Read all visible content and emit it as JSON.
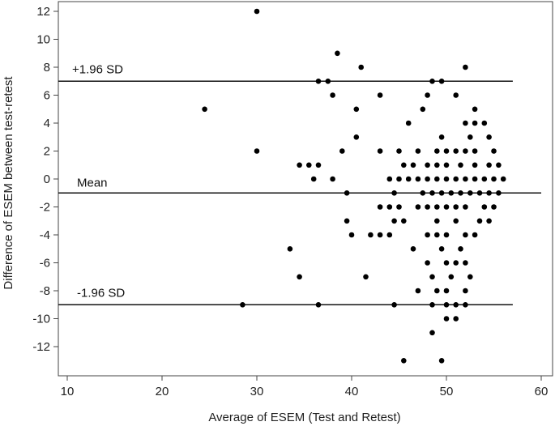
{
  "chart_data": {
    "type": "scatter",
    "xlabel": "Average of ESEM (Test and Retest)",
    "ylabel": "Difference of ESEM between test-retest",
    "xlim": [
      10,
      60
    ],
    "ylim": [
      -13,
      12
    ],
    "x_ticks": [
      10,
      20,
      30,
      40,
      50,
      60
    ],
    "y_ticks": [
      12,
      10,
      8,
      6,
      4,
      2,
      0,
      -2,
      -4,
      -6,
      -8,
      -10,
      -12
    ],
    "grid": false,
    "reference_lines": [
      {
        "label": "+1.96 SD",
        "y": 7,
        "x_range": [
          10,
          57
        ]
      },
      {
        "label": "Mean",
        "y": -1,
        "x_range": [
          10,
          60
        ]
      },
      {
        "label": "-1.96 SD",
        "y": -9,
        "x_range": [
          10,
          57
        ]
      }
    ],
    "points": [
      [
        30,
        12
      ],
      [
        38.5,
        9
      ],
      [
        41,
        8
      ],
      [
        52,
        8
      ],
      [
        36.5,
        7
      ],
      [
        37.5,
        7
      ],
      [
        48.5,
        7
      ],
      [
        49.5,
        7
      ],
      [
        38,
        6
      ],
      [
        43,
        6
      ],
      [
        48,
        6
      ],
      [
        51,
        6
      ],
      [
        24.5,
        5
      ],
      [
        40.5,
        5
      ],
      [
        47.5,
        5
      ],
      [
        53,
        5
      ],
      [
        46,
        4
      ],
      [
        52,
        4
      ],
      [
        53,
        4
      ],
      [
        54,
        4
      ],
      [
        40.5,
        3
      ],
      [
        49.5,
        3
      ],
      [
        52.5,
        3
      ],
      [
        54.5,
        3
      ],
      [
        30,
        2
      ],
      [
        39,
        2
      ],
      [
        43,
        2
      ],
      [
        45,
        2
      ],
      [
        47,
        2
      ],
      [
        49,
        2
      ],
      [
        50,
        2
      ],
      [
        51,
        2
      ],
      [
        52,
        2
      ],
      [
        53,
        2
      ],
      [
        55,
        2
      ],
      [
        34.5,
        1
      ],
      [
        35.5,
        1
      ],
      [
        36.5,
        1
      ],
      [
        45.5,
        1
      ],
      [
        46.5,
        1
      ],
      [
        48,
        1
      ],
      [
        49,
        1
      ],
      [
        50,
        1
      ],
      [
        51.5,
        1
      ],
      [
        53,
        1
      ],
      [
        54.5,
        1
      ],
      [
        55.5,
        1
      ],
      [
        36,
        0
      ],
      [
        38,
        0
      ],
      [
        44,
        0
      ],
      [
        45,
        0
      ],
      [
        46,
        0
      ],
      [
        47,
        0
      ],
      [
        48,
        0
      ],
      [
        49,
        0
      ],
      [
        50,
        0
      ],
      [
        51,
        0
      ],
      [
        52,
        0
      ],
      [
        53,
        0
      ],
      [
        54,
        0
      ],
      [
        55,
        0
      ],
      [
        56,
        0
      ],
      [
        39.5,
        -1
      ],
      [
        44.5,
        -1
      ],
      [
        47.5,
        -1
      ],
      [
        48.5,
        -1
      ],
      [
        49.5,
        -1
      ],
      [
        50.5,
        -1
      ],
      [
        51.5,
        -1
      ],
      [
        52.5,
        -1
      ],
      [
        53.5,
        -1
      ],
      [
        54.5,
        -1
      ],
      [
        55.5,
        -1
      ],
      [
        43,
        -2
      ],
      [
        44,
        -2
      ],
      [
        45,
        -2
      ],
      [
        47,
        -2
      ],
      [
        48,
        -2
      ],
      [
        49,
        -2
      ],
      [
        50,
        -2
      ],
      [
        51,
        -2
      ],
      [
        52,
        -2
      ],
      [
        54,
        -2
      ],
      [
        55,
        -2
      ],
      [
        39.5,
        -3
      ],
      [
        44.5,
        -3
      ],
      [
        45.5,
        -3
      ],
      [
        49,
        -3
      ],
      [
        51,
        -3
      ],
      [
        53.5,
        -3
      ],
      [
        54.5,
        -3
      ],
      [
        40,
        -4
      ],
      [
        42,
        -4
      ],
      [
        43,
        -4
      ],
      [
        44,
        -4
      ],
      [
        48,
        -4
      ],
      [
        49,
        -4
      ],
      [
        50,
        -4
      ],
      [
        52,
        -4
      ],
      [
        53,
        -4
      ],
      [
        33.5,
        -5
      ],
      [
        46.5,
        -5
      ],
      [
        49.5,
        -5
      ],
      [
        51.5,
        -5
      ],
      [
        48,
        -6
      ],
      [
        50,
        -6
      ],
      [
        51,
        -6
      ],
      [
        52,
        -6
      ],
      [
        34.5,
        -7
      ],
      [
        41.5,
        -7
      ],
      [
        48.5,
        -7
      ],
      [
        50.5,
        -7
      ],
      [
        52.5,
        -7
      ],
      [
        47,
        -8
      ],
      [
        49,
        -8
      ],
      [
        50,
        -8
      ],
      [
        52,
        -8
      ],
      [
        28.5,
        -9
      ],
      [
        36.5,
        -9
      ],
      [
        44.5,
        -9
      ],
      [
        48.5,
        -9
      ],
      [
        50,
        -9
      ],
      [
        51,
        -9
      ],
      [
        52,
        -9
      ],
      [
        50,
        -10
      ],
      [
        51,
        -10
      ],
      [
        48.5,
        -11
      ],
      [
        45.5,
        -13
      ],
      [
        49.5,
        -13
      ]
    ]
  }
}
